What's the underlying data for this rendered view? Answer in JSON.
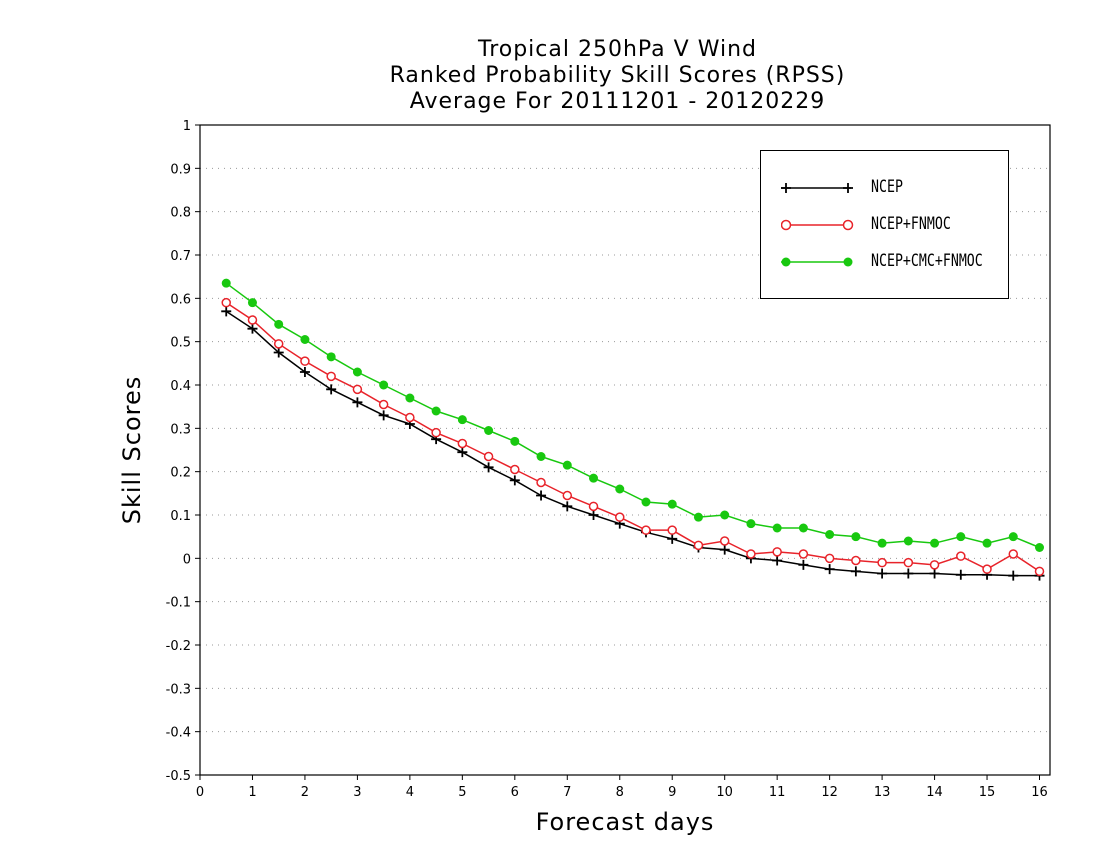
{
  "chart_data": {
    "type": "line",
    "title_lines": [
      "Tropical 250hPa V Wind",
      "Ranked Probability Skill Scores (RPSS)",
      "Average For 20111201 - 20120229"
    ],
    "xlabel": "Forecast days",
    "ylabel": "Skill Scores",
    "xlim": [
      0,
      16.2
    ],
    "ylim": [
      -0.5,
      1
    ],
    "xticks": [
      "0",
      "1",
      "2",
      "3",
      "4",
      "5",
      "6",
      "7",
      "8",
      "9",
      "10",
      "11",
      "12",
      "13",
      "14",
      "15",
      "16"
    ],
    "yticks": [
      "1",
      "0.9",
      "0.8",
      "0.7",
      "0.6",
      "0.5",
      "0.4",
      "0.3",
      "0.2",
      "0.1",
      "0",
      "-0.1",
      "-0.2",
      "-0.3",
      "-0.4",
      "-0.5"
    ],
    "grid": "horizontal-dotted",
    "legend_position": "top-right",
    "x": [
      0.5,
      1,
      1.5,
      2,
      2.5,
      3,
      3.5,
      4,
      4.5,
      5,
      5.5,
      6,
      6.5,
      7,
      7.5,
      8,
      8.5,
      9,
      9.5,
      10,
      10.5,
      11,
      11.5,
      12,
      12.5,
      13,
      13.5,
      14,
      14.5,
      15,
      15.5,
      16
    ],
    "series": [
      {
        "name": "NCEP",
        "color": "#000000",
        "marker": "plus",
        "values": [
          0.57,
          0.53,
          0.475,
          0.43,
          0.39,
          0.36,
          0.33,
          0.31,
          0.275,
          0.245,
          0.21,
          0.18,
          0.145,
          0.12,
          0.1,
          0.08,
          0.06,
          0.045,
          0.025,
          0.02,
          0.0,
          -0.005,
          -0.015,
          -0.025,
          -0.03,
          -0.035,
          -0.035,
          -0.035,
          -0.038,
          -0.038,
          -0.04,
          -0.04
        ]
      },
      {
        "name": "NCEP+FNMOC",
        "color": "#e8232a",
        "marker": "open-circle",
        "values": [
          0.59,
          0.55,
          0.495,
          0.455,
          0.42,
          0.39,
          0.355,
          0.325,
          0.29,
          0.265,
          0.235,
          0.205,
          0.175,
          0.145,
          0.12,
          0.095,
          0.065,
          0.065,
          0.03,
          0.04,
          0.01,
          0.015,
          0.01,
          0.0,
          -0.005,
          -0.01,
          -0.01,
          -0.015,
          0.005,
          -0.025,
          0.01,
          -0.03
        ]
      },
      {
        "name": "NCEP+CMC+FNMOC",
        "color": "#18c80f",
        "marker": "filled-circle",
        "values": [
          0.635,
          0.59,
          0.54,
          0.505,
          0.465,
          0.43,
          0.4,
          0.37,
          0.34,
          0.32,
          0.295,
          0.27,
          0.235,
          0.215,
          0.185,
          0.16,
          0.13,
          0.125,
          0.095,
          0.1,
          0.08,
          0.07,
          0.07,
          0.055,
          0.05,
          0.035,
          0.04,
          0.035,
          0.05,
          0.035,
          0.05,
          0.025
        ]
      }
    ]
  }
}
